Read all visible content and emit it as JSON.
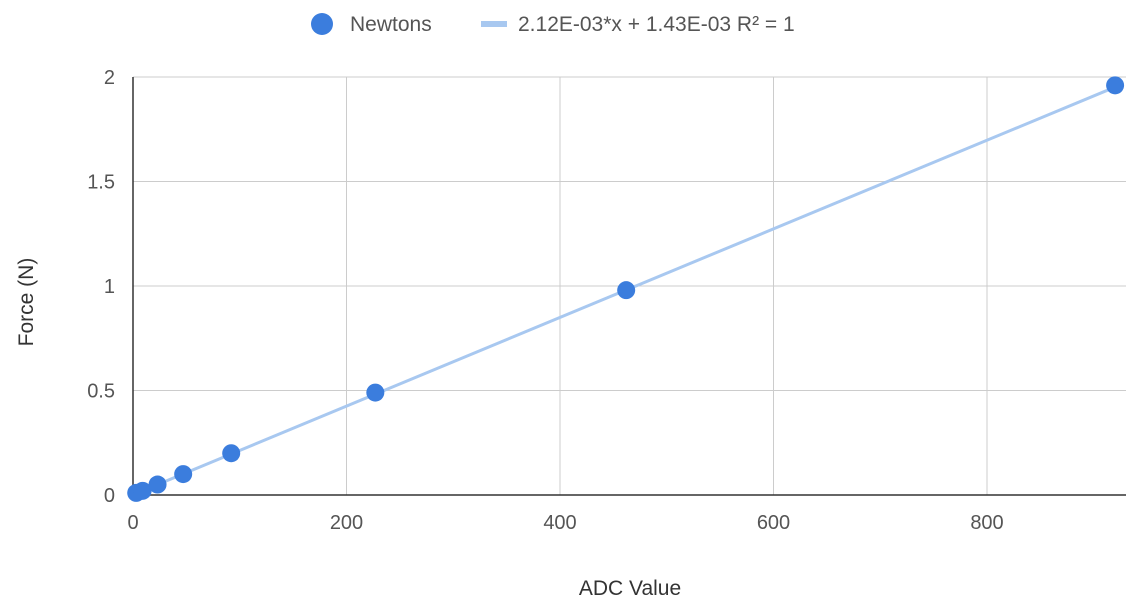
{
  "chart_data": {
    "type": "scatter",
    "xlabel": "ADC Value",
    "ylabel": "Force (N)",
    "xlim": [
      0,
      920
    ],
    "ylim": [
      0,
      2
    ],
    "xticks": [
      0,
      200,
      400,
      600,
      800
    ],
    "yticks": [
      0,
      0.5,
      1,
      1.5,
      2
    ],
    "grid": true,
    "legend_position": "top",
    "series": [
      {
        "name": "Newtons",
        "color": "#3b7ddd",
        "points": [
          {
            "x": 3,
            "y": 0.01
          },
          {
            "x": 9,
            "y": 0.02
          },
          {
            "x": 23,
            "y": 0.05
          },
          {
            "x": 47,
            "y": 0.1
          },
          {
            "x": 92,
            "y": 0.2
          },
          {
            "x": 227,
            "y": 0.49
          },
          {
            "x": 462,
            "y": 0.98
          },
          {
            "x": 920,
            "y": 1.96
          }
        ]
      }
    ],
    "trendline": {
      "name": "2.12E-03*x + 1.43E-03 R² = 1",
      "color": "#a8c8f0",
      "slope": 0.00212,
      "intercept": 0.00143,
      "x_range": [
        0,
        920
      ]
    }
  }
}
